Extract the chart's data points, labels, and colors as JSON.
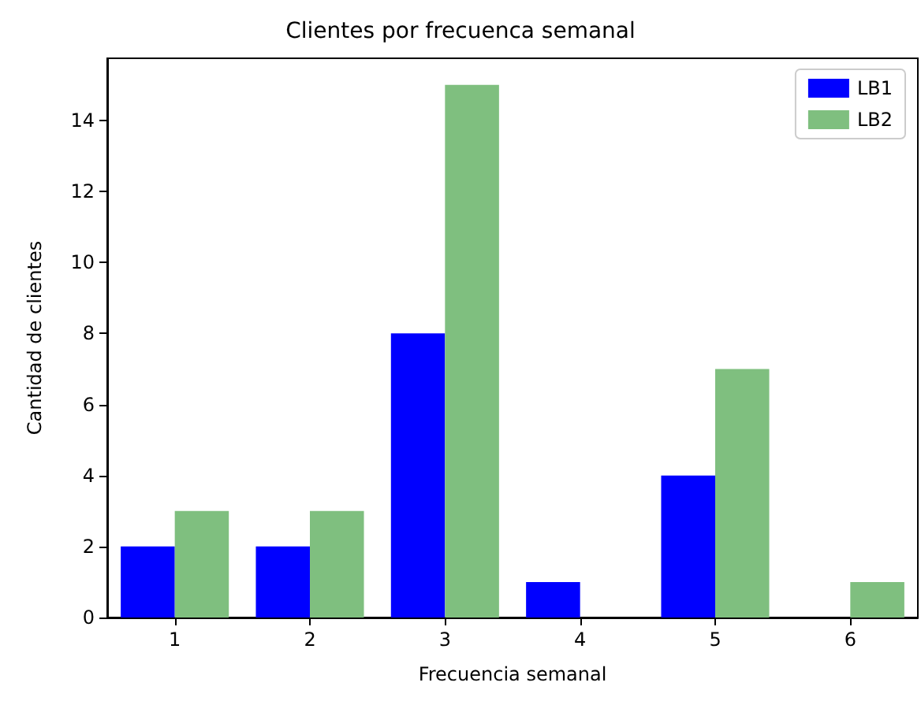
{
  "chart_data": {
    "type": "bar",
    "title": "Clientes por frecuenca semanal",
    "xlabel": "Frecuencia semanal",
    "ylabel": "Cantidad de clientes",
    "categories": [
      "1",
      "2",
      "3",
      "4",
      "5",
      "6"
    ],
    "series": [
      {
        "name": "LB1",
        "color": "#0000ff",
        "values": [
          2,
          2,
          8,
          1,
          4,
          0
        ]
      },
      {
        "name": "LB2",
        "color": "#7fbf7f",
        "values": [
          3,
          3,
          15,
          0,
          7,
          1
        ]
      }
    ],
    "ylim": [
      0,
      15.75
    ],
    "yticks": [
      0,
      2,
      4,
      6,
      8,
      10,
      12,
      14
    ],
    "grid": false,
    "legend": "top right"
  }
}
